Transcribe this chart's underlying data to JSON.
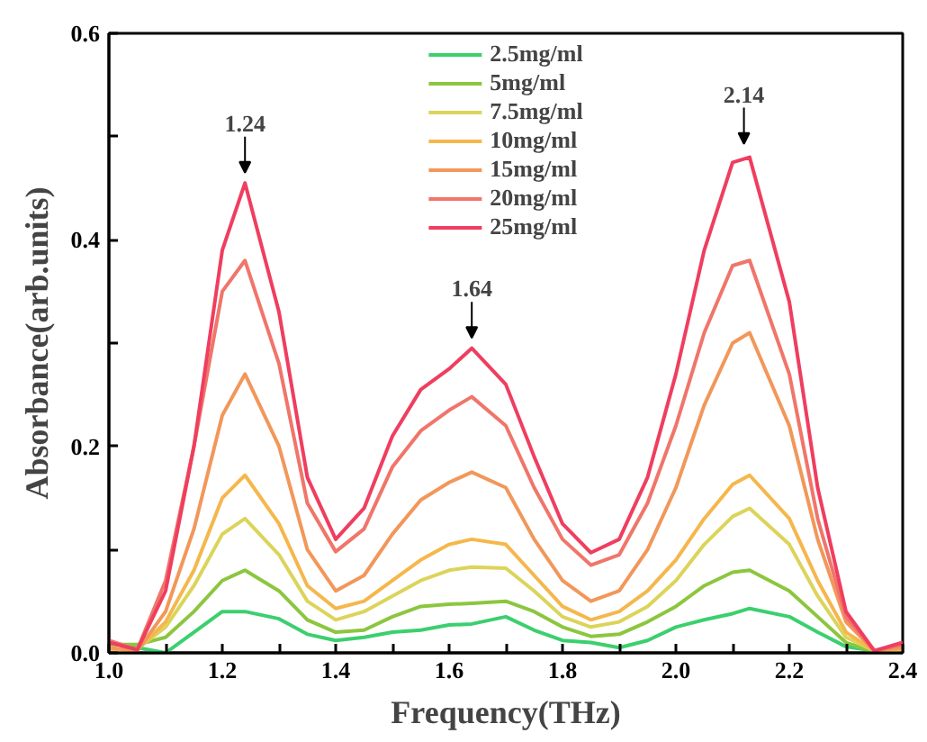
{
  "chart_data": {
    "type": "line",
    "xlabel": "Frequency(THz)",
    "ylabel": "Absorbance(arb.units)",
    "x": [
      1.0,
      1.05,
      1.1,
      1.15,
      1.2,
      1.24,
      1.3,
      1.35,
      1.4,
      1.45,
      1.5,
      1.55,
      1.6,
      1.64,
      1.7,
      1.75,
      1.8,
      1.85,
      1.9,
      1.95,
      2.0,
      2.05,
      2.1,
      2.13,
      2.2,
      2.25,
      2.3,
      2.35,
      2.4
    ],
    "series": [
      {
        "name": "2.5mg/ml",
        "color": "#3ccf6e",
        "values": [
          0.01,
          0.005,
          0.0,
          0.02,
          0.04,
          0.04,
          0.033,
          0.018,
          0.012,
          0.015,
          0.02,
          0.022,
          0.027,
          0.028,
          0.035,
          0.022,
          0.012,
          0.01,
          0.005,
          0.012,
          0.025,
          0.032,
          0.038,
          0.043,
          0.035,
          0.02,
          0.006,
          0.002,
          0.002
        ]
      },
      {
        "name": "5mg/ml",
        "color": "#8cc63f",
        "values": [
          0.008,
          0.008,
          0.015,
          0.04,
          0.07,
          0.08,
          0.06,
          0.032,
          0.02,
          0.022,
          0.035,
          0.045,
          0.047,
          0.048,
          0.05,
          0.04,
          0.025,
          0.016,
          0.018,
          0.03,
          0.045,
          0.065,
          0.078,
          0.08,
          0.06,
          0.035,
          0.01,
          0.001,
          0.002
        ]
      },
      {
        "name": "7.5mg/ml",
        "color": "#dcd45a",
        "values": [
          0.002,
          0.004,
          0.025,
          0.065,
          0.115,
          0.13,
          0.095,
          0.05,
          0.032,
          0.04,
          0.055,
          0.07,
          0.08,
          0.083,
          0.082,
          0.06,
          0.035,
          0.025,
          0.03,
          0.045,
          0.07,
          0.105,
          0.132,
          0.14,
          0.105,
          0.055,
          0.015,
          0.002,
          0.003
        ]
      },
      {
        "name": "10mg/ml",
        "color": "#f5b74c",
        "values": [
          0.003,
          0.003,
          0.03,
          0.08,
          0.15,
          0.172,
          0.125,
          0.065,
          0.043,
          0.05,
          0.07,
          0.09,
          0.105,
          0.11,
          0.105,
          0.075,
          0.045,
          0.032,
          0.04,
          0.06,
          0.09,
          0.13,
          0.163,
          0.172,
          0.13,
          0.07,
          0.02,
          0.002,
          0.004
        ]
      },
      {
        "name": "15mg/ml",
        "color": "#f2975a",
        "values": [
          0.005,
          0.002,
          0.04,
          0.12,
          0.23,
          0.27,
          0.2,
          0.1,
          0.06,
          0.075,
          0.115,
          0.148,
          0.165,
          0.175,
          0.16,
          0.11,
          0.07,
          0.05,
          0.06,
          0.1,
          0.16,
          0.24,
          0.3,
          0.31,
          0.22,
          0.11,
          0.03,
          0.002,
          0.005
        ]
      },
      {
        "name": "20mg/ml",
        "color": "#f0756a",
        "values": [
          0.012,
          0.003,
          0.07,
          0.2,
          0.35,
          0.38,
          0.28,
          0.145,
          0.098,
          0.12,
          0.18,
          0.215,
          0.235,
          0.248,
          0.22,
          0.16,
          0.11,
          0.085,
          0.095,
          0.145,
          0.22,
          0.31,
          0.375,
          0.38,
          0.27,
          0.13,
          0.035,
          0.002,
          0.008
        ]
      },
      {
        "name": "25mg/ml",
        "color": "#ef3e5f",
        "values": [
          0.01,
          0.003,
          0.06,
          0.2,
          0.39,
          0.455,
          0.33,
          0.17,
          0.11,
          0.14,
          0.21,
          0.255,
          0.275,
          0.295,
          0.26,
          0.19,
          0.125,
          0.097,
          0.11,
          0.17,
          0.27,
          0.39,
          0.475,
          0.48,
          0.34,
          0.16,
          0.04,
          0.002,
          0.01
        ]
      }
    ],
    "xlim": [
      1.0,
      2.4
    ],
    "ylim": [
      0,
      0.6
    ],
    "xticks": [
      {
        "value": 1.0,
        "label": "1.0"
      },
      {
        "value": 1.1,
        "label": null
      },
      {
        "value": 1.2,
        "label": "1.2"
      },
      {
        "value": 1.3,
        "label": null
      },
      {
        "value": 1.4,
        "label": "1.4"
      },
      {
        "value": 1.5,
        "label": null
      },
      {
        "value": 1.6,
        "label": "1.6"
      },
      {
        "value": 1.7,
        "label": null
      },
      {
        "value": 1.8,
        "label": "1.8"
      },
      {
        "value": 1.9,
        "label": null
      },
      {
        "value": 2.0,
        "label": "2.0"
      },
      {
        "value": 2.1,
        "label": null
      },
      {
        "value": 2.2,
        "label": "2.2"
      },
      {
        "value": 2.3,
        "label": null
      },
      {
        "value": 2.4,
        "label": "2.4"
      }
    ],
    "yticks": [
      {
        "value": 0,
        "label": "0.0"
      },
      {
        "value": 0.1,
        "label": null
      },
      {
        "value": 0.2,
        "label": "0.2"
      },
      {
        "value": 0.3,
        "label": null
      },
      {
        "value": 0.4,
        "label": "0.4"
      },
      {
        "value": 0.5,
        "label": null
      },
      {
        "value": 0.6,
        "label": "0.6"
      }
    ],
    "annotations": [
      {
        "text": "1.24",
        "x": 1.24,
        "y": 0.455
      },
      {
        "text": "1.64",
        "x": 1.64,
        "y": 0.295
      },
      {
        "text": "2.14",
        "x": 2.12,
        "y": 0.483
      }
    ],
    "legend": "top",
    "grid": false,
    "line_style": "solid",
    "marker": "none"
  }
}
